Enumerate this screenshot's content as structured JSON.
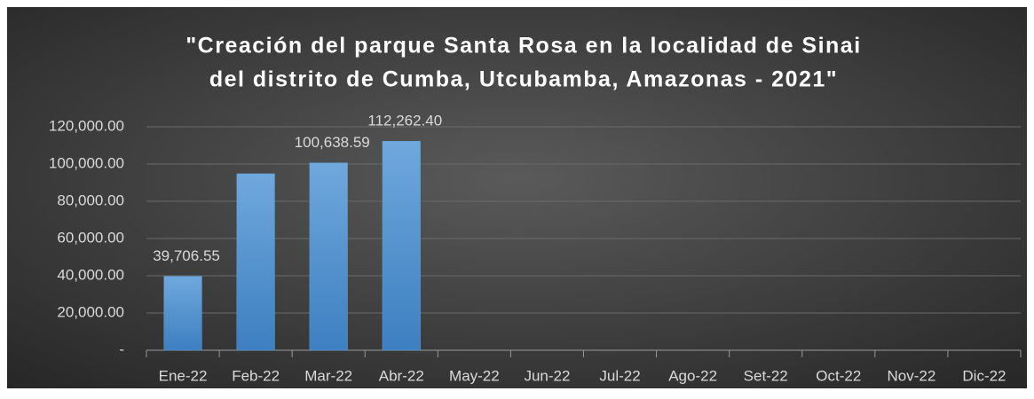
{
  "chart_data": {
    "type": "bar",
    "title": [
      "\"Creación del parque Santa Rosa en la localidad de Sinai",
      "del distrito de Cumba, Utcubamba, Amazonas - 2021\""
    ],
    "categories": [
      "Ene-22",
      "Feb-22",
      "Mar-22",
      "Abr-22",
      "May-22",
      "Jun-22",
      "Jul-22",
      "Ago-22",
      "Set-22",
      "Oct-22",
      "Nov-22",
      "Dic-22"
    ],
    "values": [
      39706.55,
      94800,
      100638.59,
      112262.4,
      null,
      null,
      null,
      null,
      null,
      null,
      null,
      null
    ],
    "value_labels": [
      "39,706.55",
      null,
      "100,638.59",
      "112,262.40",
      null,
      null,
      null,
      null,
      null,
      null,
      null,
      null
    ],
    "color": "#5b9bd5",
    "ylim": [
      0,
      120000
    ],
    "yticks": [
      {
        "value": 0,
        "label": "-"
      },
      {
        "value": 20000,
        "label": "20,000.00"
      },
      {
        "value": 40000,
        "label": "40,000.00"
      },
      {
        "value": 60000,
        "label": "60,000.00"
      },
      {
        "value": 80000,
        "label": "80,000.00"
      },
      {
        "value": 100000,
        "label": "100,000.00"
      },
      {
        "value": 120000,
        "label": "120,000.00"
      }
    ],
    "grid": true
  }
}
